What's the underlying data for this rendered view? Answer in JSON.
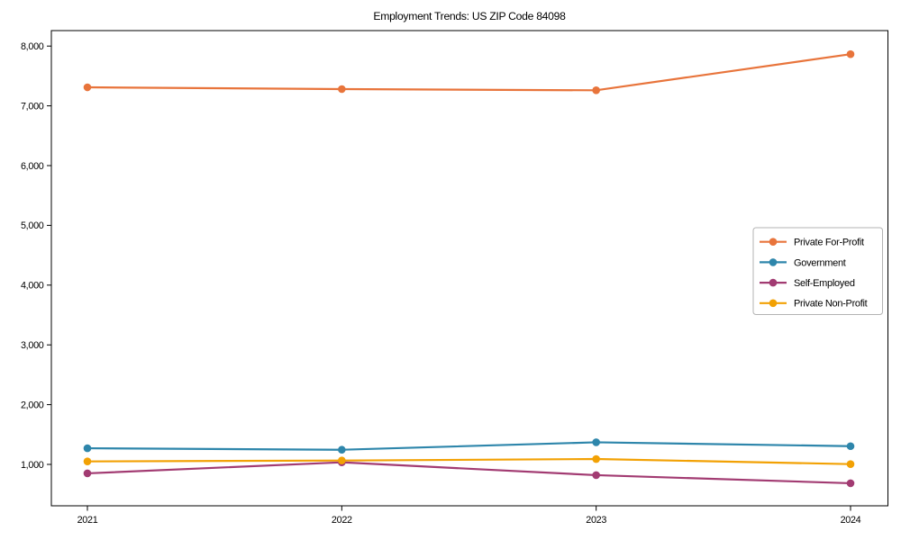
{
  "figure": {
    "background": "#ffffff",
    "axis_color": "#000000"
  },
  "chart_data": {
    "type": "line",
    "title": "Employment Trends: US ZIP Code 84098",
    "xlabel": "",
    "ylabel": "",
    "x": [
      "2021",
      "2022",
      "2023",
      "2024"
    ],
    "series": [
      {
        "name": "Private For-Profit",
        "color": "#E8743B",
        "marker": "circle",
        "values": [
          7310,
          7280,
          7260,
          7865
        ]
      },
      {
        "name": "Government",
        "color": "#2E86AB",
        "marker": "circle",
        "values": [
          1270,
          1245,
          1370,
          1305
        ]
      },
      {
        "name": "Self-Employed",
        "color": "#A23B72",
        "marker": "circle",
        "values": [
          850,
          1035,
          820,
          685
        ]
      },
      {
        "name": "Private Non-Profit",
        "color": "#F2A104",
        "marker": "circle",
        "values": [
          1050,
          1065,
          1090,
          1005
        ]
      }
    ],
    "y_ticks": [
      {
        "value": 1000,
        "label": "1,000"
      },
      {
        "value": 2000,
        "label": "2,000"
      },
      {
        "value": 3000,
        "label": "3,000"
      },
      {
        "value": 4000,
        "label": "4,000"
      },
      {
        "value": 5000,
        "label": "5,000"
      },
      {
        "value": 6000,
        "label": "6,000"
      },
      {
        "value": 7000,
        "label": "7,000"
      },
      {
        "value": 8000,
        "label": "8,000"
      }
    ],
    "ylim": [
      310,
      8260
    ],
    "grid": false,
    "legend": {
      "position": "center-right",
      "entries": [
        "Private For-Profit",
        "Government",
        "Self-Employed",
        "Private Non-Profit"
      ],
      "border_color": "#b3b3b3",
      "background": "#ffffff"
    }
  }
}
